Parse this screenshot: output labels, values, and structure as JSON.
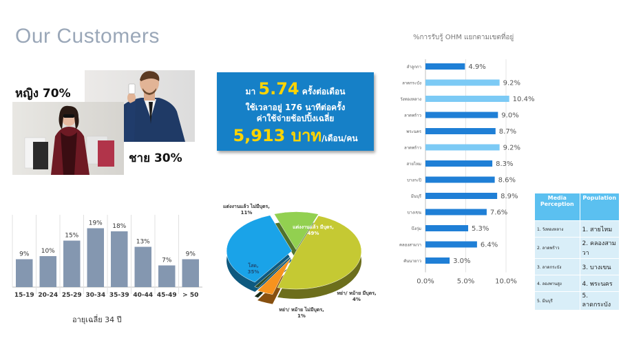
{
  "page": {
    "title": "Our Customers"
  },
  "gender": {
    "female": "หญิง 70%",
    "male": "ชาย 30%"
  },
  "stats": {
    "visits_prefix": "มา",
    "visits_value": "5.74",
    "visits_suffix": "ครั้งต่อเดือน",
    "time_text": "ใช้เวลาอยู่ 176 นาทีต่อครั้ง",
    "spend_text": "ค่าใช้จ่ายช้อปปิ้งเฉลี่ย",
    "spend_value": "5,913 บาท",
    "spend_unit": "/เดือน/คน"
  },
  "age": {
    "caption": "อายุเฉลี่ย 34 ปี"
  },
  "chart_data": [
    {
      "type": "bar",
      "categories": [
        "15-19",
        "20-24",
        "25-29",
        "30-34",
        "35-39",
        "40-44",
        "45-49",
        "> 50"
      ],
      "values": [
        9,
        10,
        15,
        19,
        18,
        13,
        7,
        9
      ],
      "value_labels": [
        "9%",
        "10%",
        "15%",
        "19%",
        "18%",
        "13%",
        "7%",
        "9%"
      ],
      "ylim": [
        0,
        20
      ],
      "color": "#8497b0"
    },
    {
      "type": "pie",
      "labels": [
        "แต่งงานแล้ว มีบุตร, 49%",
        "หย่า/ หม้าย มีบุตร, 4%",
        "หย่า/ หม้าย ไม่มีบุตร, 1%",
        "โสด, 35%",
        "แต่งงานแล้ว ไม่มีบุตร, 11%"
      ],
      "values": [
        49,
        4,
        1,
        35,
        11
      ],
      "colors": [
        "#c5c933",
        "#f7931e",
        "#2f4f2f",
        "#1aa3e8",
        "#92d050"
      ]
    },
    {
      "type": "bar",
      "orientation": "horizontal",
      "title": "%การรับรู้ OHM แยกตามเขตที่อยู่",
      "categories": [
        "ลำลูกกา",
        "ลาดกระบัง",
        "วังทองหลาง",
        "ลาดพร้าว",
        "พระนคร",
        "ลาดพร้าว",
        "สายไหม",
        "บางกะปิ",
        "มีนบุรี",
        "บางเขน",
        "บึงกุ่ม",
        "คลองสามวา",
        "คันนายาว"
      ],
      "values": [
        4.9,
        9.2,
        10.4,
        9.0,
        8.7,
        9.2,
        8.3,
        8.6,
        8.9,
        7.6,
        5.3,
        6.4,
        3.0
      ],
      "value_labels": [
        "4.9%",
        "9.2%",
        "10.4%",
        "9.0%",
        "8.7%",
        "9.2%",
        "8.3%",
        "8.6%",
        "8.9%",
        "7.6%",
        "5.3%",
        "6.4%",
        "3.0%"
      ],
      "xticks": [
        "0.0%",
        "5.0%",
        "10.0%"
      ],
      "xlim": [
        0,
        12
      ],
      "highlight": [
        false,
        true,
        true,
        false,
        false,
        true,
        false,
        false,
        false,
        false,
        false,
        false,
        false
      ],
      "colors": {
        "normal": "#1f7fd6",
        "highlight": "#7ccaf5"
      }
    }
  ],
  "media_table": {
    "headers": [
      "Media Perception",
      "Population"
    ],
    "rows": [
      [
        "1. วังทองหลาง",
        "1. สายไหม"
      ],
      [
        "2. ลาดพร้าว",
        "2. คลองสามวา"
      ],
      [
        "3. ลาดกระบัง",
        "3. บางเขน"
      ],
      [
        "4. ลองพานสูง",
        "4. พระนคร"
      ],
      [
        "5. มีนบุรี",
        "5. ลาดกระบัง"
      ]
    ]
  }
}
